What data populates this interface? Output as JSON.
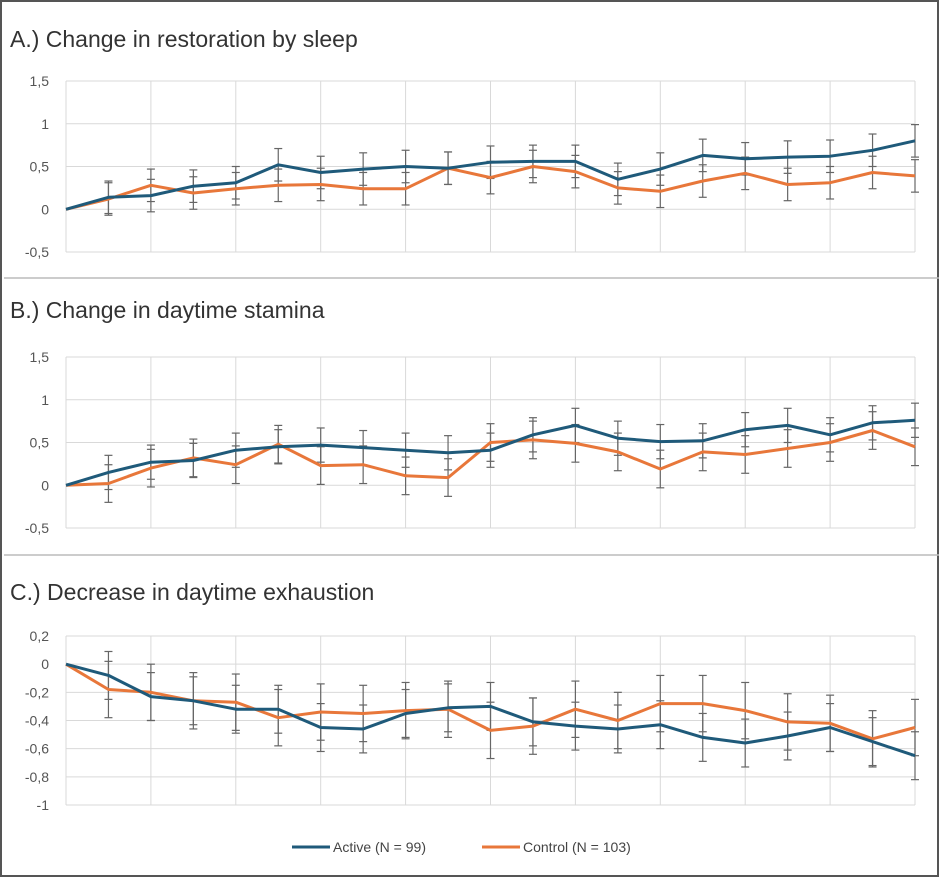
{
  "chart_data": [
    {
      "type": "line",
      "title": "A.) Change in restoration by sleep",
      "xlabel": "",
      "ylabel": "",
      "x": [
        0,
        1,
        2,
        3,
        4,
        5,
        6,
        7,
        8,
        9,
        10,
        11,
        12,
        13,
        14,
        15,
        16,
        17,
        18,
        19,
        20
      ],
      "ylim": [
        -0.5,
        1.5
      ],
      "yticks": [
        "1,5",
        "1",
        "0,5",
        "0",
        "-0,5"
      ],
      "ytick_values": [
        1.5,
        1,
        0.5,
        0,
        -0.5
      ],
      "grid": true,
      "series": [
        {
          "name": "Active (N = 99)",
          "color": "#1f5a7a",
          "error": 0.19,
          "values": [
            0,
            0.14,
            0.16,
            0.27,
            0.31,
            0.52,
            0.43,
            0.47,
            0.5,
            0.48,
            0.55,
            0.56,
            0.56,
            0.35,
            0.47,
            0.63,
            0.59,
            0.61,
            0.62,
            0.69,
            0.8
          ]
        },
        {
          "name": "Control (N = 103)",
          "color": "#e8773a",
          "error": 0.19,
          "values": [
            0,
            0.12,
            0.28,
            0.19,
            0.24,
            0.28,
            0.29,
            0.24,
            0.24,
            0.48,
            0.37,
            0.5,
            0.44,
            0.25,
            0.21,
            0.33,
            0.42,
            0.29,
            0.31,
            0.43,
            0.39
          ]
        }
      ]
    },
    {
      "type": "line",
      "title": "B.) Change in daytime stamina",
      "xlabel": "",
      "ylabel": "",
      "x": [
        0,
        1,
        2,
        3,
        4,
        5,
        6,
        7,
        8,
        9,
        10,
        11,
        12,
        13,
        14,
        15,
        16,
        17,
        18,
        19,
        20
      ],
      "ylim": [
        -0.5,
        1.5
      ],
      "yticks": [
        "1,5",
        "1",
        "0,5",
        "0",
        "-0,5"
      ],
      "ytick_values": [
        1.5,
        1,
        0.5,
        0,
        -0.5
      ],
      "grid": true,
      "series": [
        {
          "name": "Active (N = 99)",
          "color": "#1f5a7a",
          "error": 0.2,
          "values": [
            0,
            0.15,
            0.27,
            0.29,
            0.41,
            0.45,
            0.47,
            0.44,
            0.41,
            0.38,
            0.41,
            0.59,
            0.7,
            0.55,
            0.51,
            0.52,
            0.65,
            0.7,
            0.59,
            0.73,
            0.76
          ]
        },
        {
          "name": "Control (N = 103)",
          "color": "#e8773a",
          "error": 0.22,
          "values": [
            0,
            0.02,
            0.2,
            0.32,
            0.24,
            0.48,
            0.23,
            0.24,
            0.11,
            0.09,
            0.5,
            0.53,
            0.49,
            0.39,
            0.19,
            0.39,
            0.36,
            0.43,
            0.5,
            0.64,
            0.45
          ]
        }
      ]
    },
    {
      "type": "line",
      "title": "C.) Decrease in daytime exhaustion",
      "xlabel": "",
      "ylabel": "",
      "x": [
        0,
        1,
        2,
        3,
        4,
        5,
        6,
        7,
        8,
        9,
        10,
        11,
        12,
        13,
        14,
        15,
        16,
        17,
        18,
        19,
        20
      ],
      "ylim": [
        -1,
        0.2
      ],
      "yticks": [
        "0,2",
        "0",
        "-0,2",
        "-0,4",
        "-0,6",
        "-0,8",
        "-1"
      ],
      "ytick_values": [
        0.2,
        0,
        -0.2,
        -0.4,
        -0.6,
        -0.8,
        -1
      ],
      "grid": true,
      "legend_position": "bottom",
      "series": [
        {
          "name": "Active (N = 99)",
          "color": "#1f5a7a",
          "error": 0.17,
          "values": [
            0,
            -0.08,
            -0.23,
            -0.26,
            -0.32,
            -0.32,
            -0.45,
            -0.46,
            -0.35,
            -0.31,
            -0.3,
            -0.41,
            -0.44,
            -0.46,
            -0.43,
            -0.52,
            -0.56,
            -0.51,
            -0.45,
            -0.55,
            -0.65
          ]
        },
        {
          "name": "Control (N = 103)",
          "color": "#e8773a",
          "error": 0.2,
          "values": [
            0,
            -0.18,
            -0.2,
            -0.26,
            -0.27,
            -0.38,
            -0.34,
            -0.35,
            -0.33,
            -0.32,
            -0.47,
            -0.44,
            -0.32,
            -0.4,
            -0.28,
            -0.28,
            -0.33,
            -0.41,
            -0.42,
            -0.53,
            -0.45
          ]
        }
      ]
    }
  ],
  "legend": {
    "active": "Active (N = 99)",
    "control": "Control (N = 103)"
  }
}
